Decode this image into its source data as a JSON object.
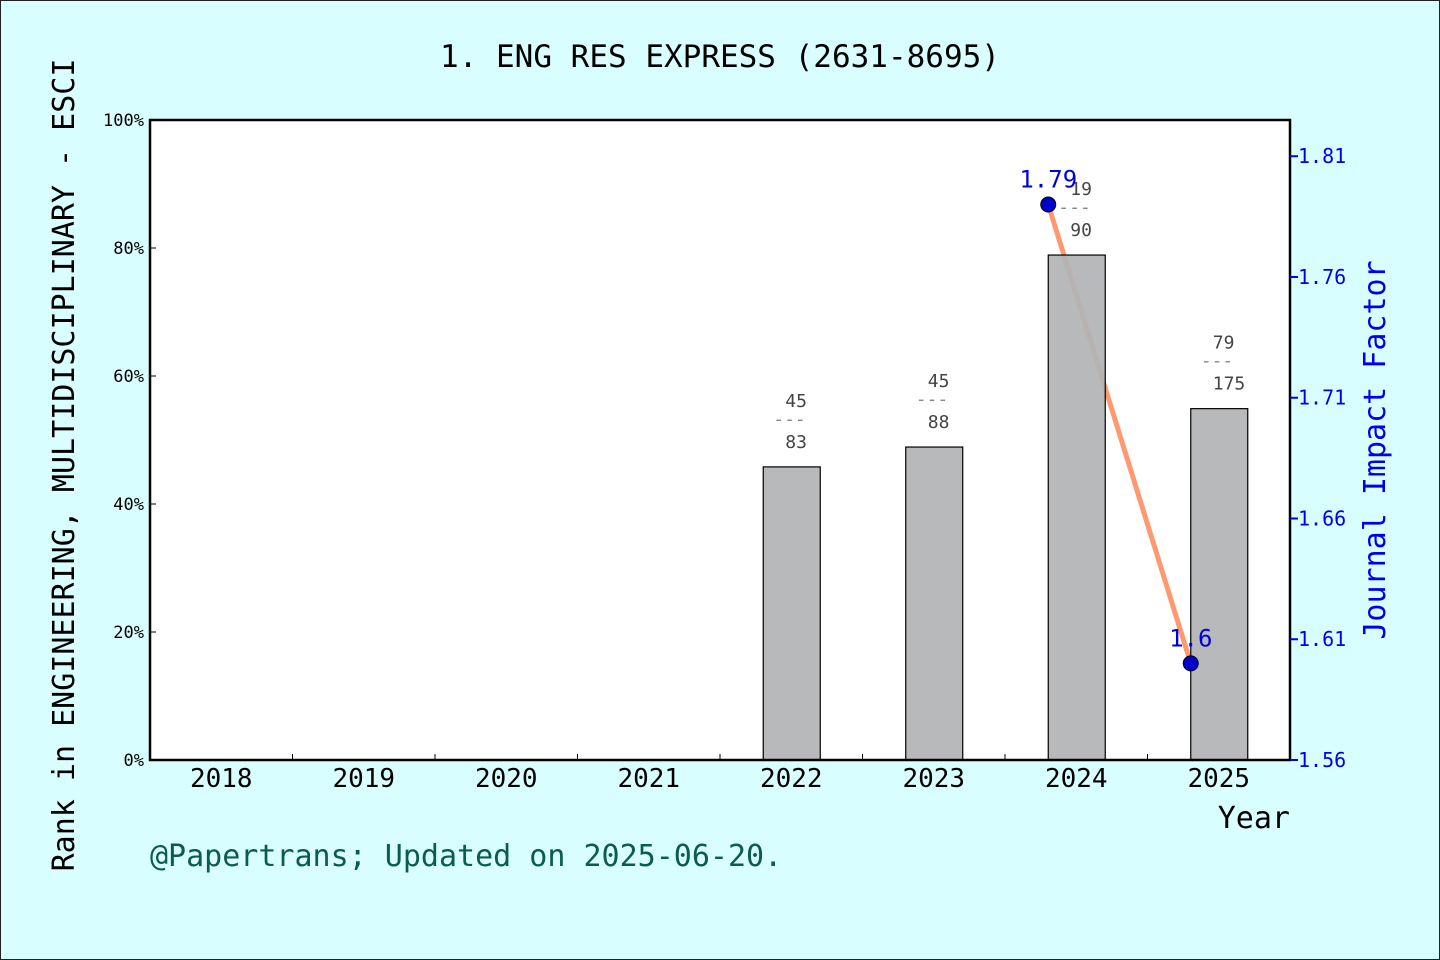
{
  "chart_data": {
    "type": "bar+line",
    "title": "1. ENG RES EXPRESS (2631-8695)",
    "xlabel": "Year",
    "ylabel_left": "Rank in ENGINEERING, MULTIDISCIPLINARY - ESCI",
    "ylabel_right": "Journal Impact Factor",
    "categories": [
      "2018",
      "2019",
      "2020",
      "2021",
      "2022",
      "2023",
      "2024",
      "2025"
    ],
    "left_axis": {
      "ylim": [
        0,
        100
      ],
      "ticks": [
        "0%",
        "20%",
        "40%",
        "60%",
        "80%",
        "100%"
      ]
    },
    "right_axis": {
      "ylim": [
        1.56,
        1.825
      ],
      "ticks": [
        "1.56",
        "1.61",
        "1.66",
        "1.71",
        "1.76",
        "1.81"
      ]
    },
    "bars": {
      "values_percent": [
        null,
        null,
        null,
        null,
        45.8,
        48.9,
        78.9,
        54.9
      ],
      "ranks": [
        null,
        null,
        null,
        null,
        "45",
        "45",
        "19",
        "79"
      ],
      "totals": [
        null,
        null,
        null,
        null,
        "83",
        "88",
        "90",
        "175"
      ],
      "separator": "---",
      "color": "#b3b4b6"
    },
    "impact_factor": {
      "years": [
        "2024",
        "2025"
      ],
      "values": [
        1.79,
        1.6
      ],
      "labels": [
        "1.79",
        "1.6"
      ],
      "line_color": "#ff9a70",
      "point_color": "#0000cc"
    },
    "grid": false
  },
  "footer": "@Papertrans; Updated on 2025-06-20."
}
